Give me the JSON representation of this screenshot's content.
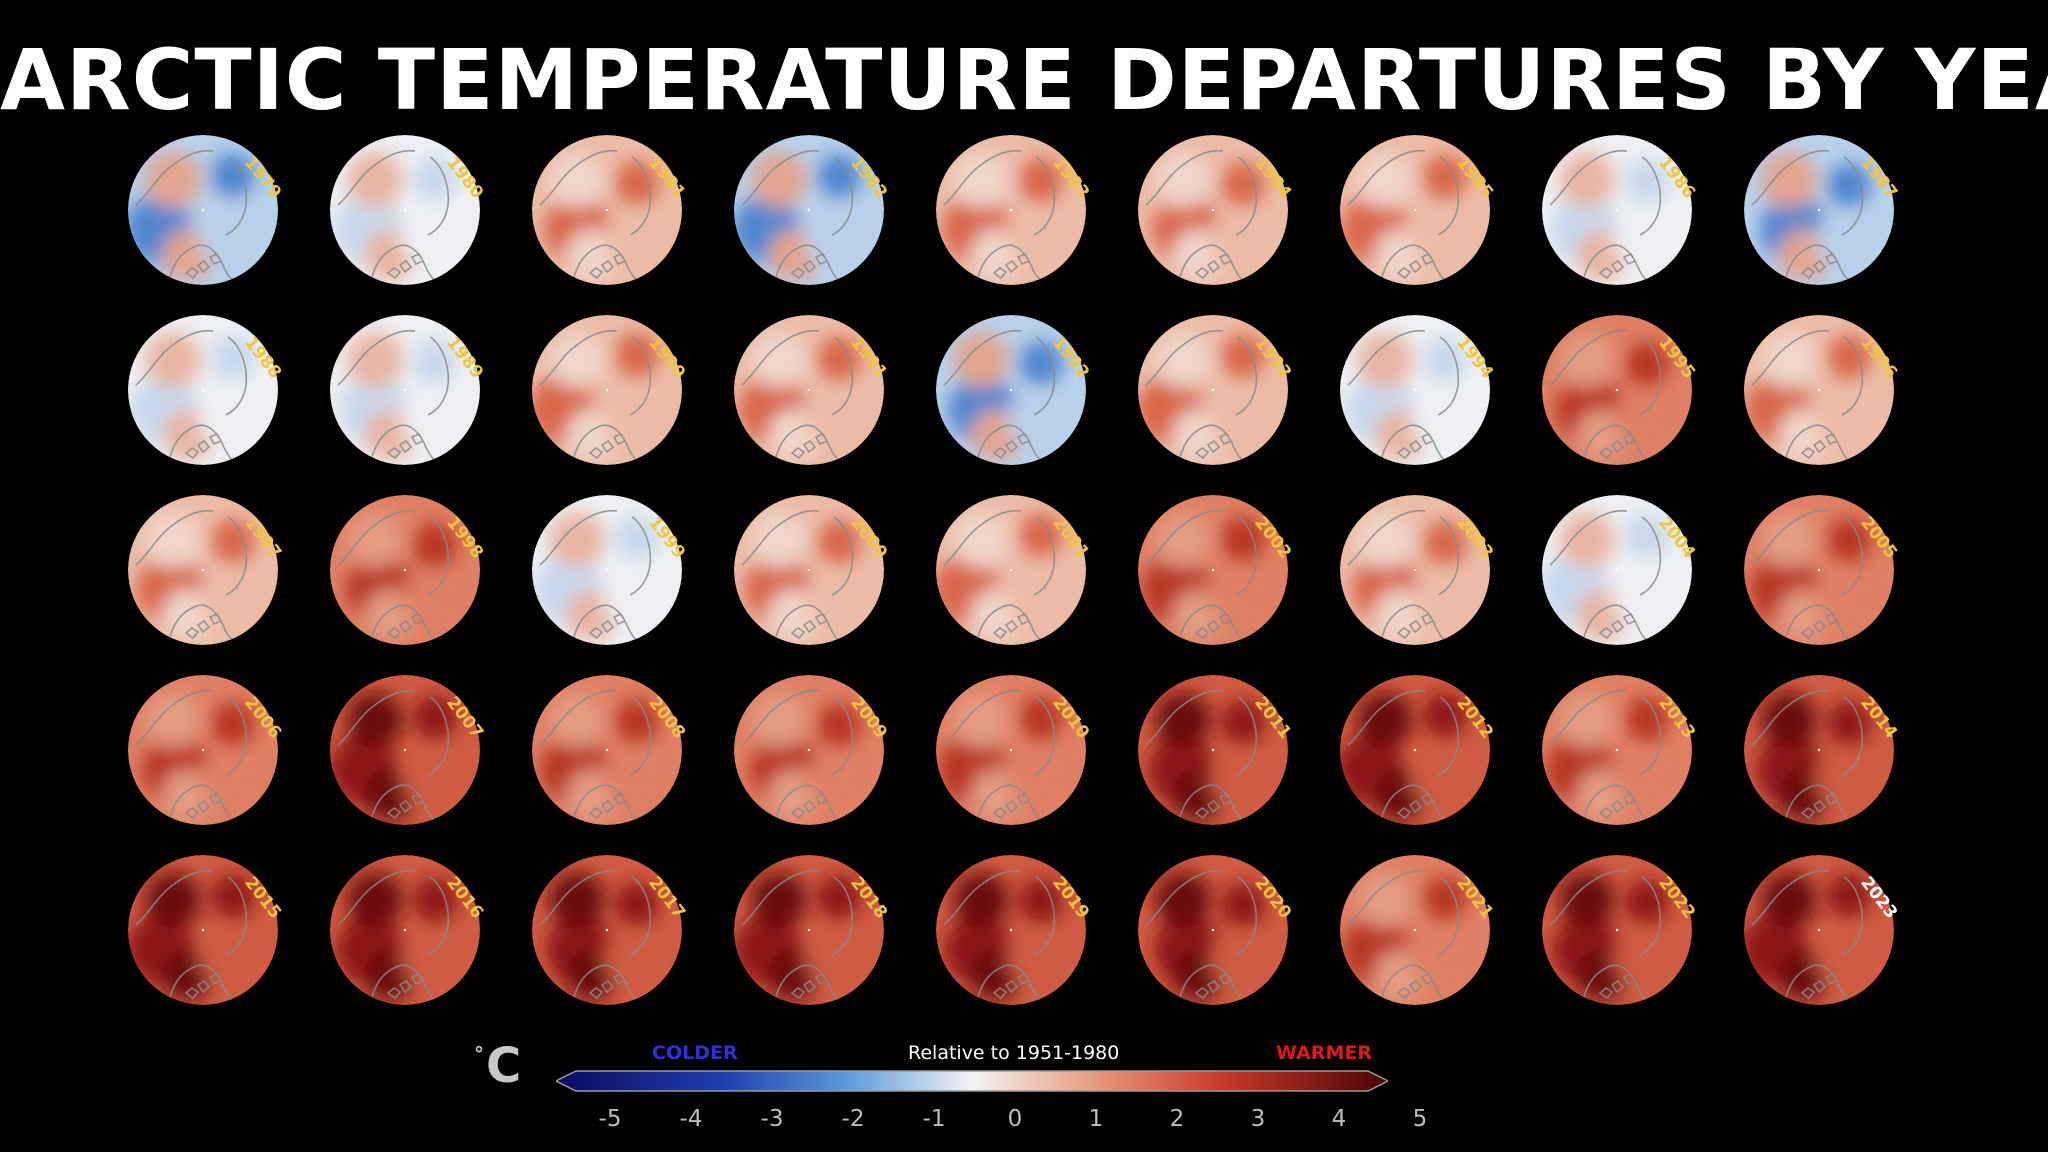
{
  "title": "ARCTIC TEMPERATURE DEPARTURES BY YEAR",
  "maps": [
    {
      "year": "1979",
      "label_color": "#f2c53d"
    },
    {
      "year": "1980",
      "label_color": "#f2c53d"
    },
    {
      "year": "1981",
      "label_color": "#f2c53d"
    },
    {
      "year": "1982",
      "label_color": "#f2c53d"
    },
    {
      "year": "1983",
      "label_color": "#f2c53d"
    },
    {
      "year": "1984",
      "label_color": "#f2c53d"
    },
    {
      "year": "1985",
      "label_color": "#f2c53d"
    },
    {
      "year": "1986",
      "label_color": "#f2c53d"
    },
    {
      "year": "1987",
      "label_color": "#f2c53d"
    },
    {
      "year": "1988",
      "label_color": "#f2c53d"
    },
    {
      "year": "1989",
      "label_color": "#f2c53d"
    },
    {
      "year": "1990",
      "label_color": "#f2c53d"
    },
    {
      "year": "1991",
      "label_color": "#f2c53d"
    },
    {
      "year": "1992",
      "label_color": "#f2c53d"
    },
    {
      "year": "1993",
      "label_color": "#f2c53d"
    },
    {
      "year": "1994",
      "label_color": "#f2c53d"
    },
    {
      "year": "1995",
      "label_color": "#f2c53d"
    },
    {
      "year": "1996",
      "label_color": "#f2c53d"
    },
    {
      "year": "1997",
      "label_color": "#f2c53d"
    },
    {
      "year": "1998",
      "label_color": "#f2c53d"
    },
    {
      "year": "1999",
      "label_color": "#f2c53d"
    },
    {
      "year": "2000",
      "label_color": "#f2c53d"
    },
    {
      "year": "2001",
      "label_color": "#f2c53d"
    },
    {
      "year": "2002",
      "label_color": "#f2c53d"
    },
    {
      "year": "2003",
      "label_color": "#f2c53d"
    },
    {
      "year": "2004",
      "label_color": "#f2c53d"
    },
    {
      "year": "2005",
      "label_color": "#f2c53d"
    },
    {
      "year": "2006",
      "label_color": "#f2c53d"
    },
    {
      "year": "2007",
      "label_color": "#f2c53d"
    },
    {
      "year": "2008",
      "label_color": "#f2c53d"
    },
    {
      "year": "2009",
      "label_color": "#f2c53d"
    },
    {
      "year": "2010",
      "label_color": "#f2c53d"
    },
    {
      "year": "2011",
      "label_color": "#f2c53d"
    },
    {
      "year": "2012",
      "label_color": "#f2c53d"
    },
    {
      "year": "2013",
      "label_color": "#f2c53d"
    },
    {
      "year": "2014",
      "label_color": "#f2c53d"
    },
    {
      "year": "2015",
      "label_color": "#f2c53d"
    },
    {
      "year": "2016",
      "label_color": "#f2c53d"
    },
    {
      "year": "2017",
      "label_color": "#f2c53d"
    },
    {
      "year": "2018",
      "label_color": "#f2c53d"
    },
    {
      "year": "2019",
      "label_color": "#f2c53d"
    },
    {
      "year": "2020",
      "label_color": "#f2c53d"
    },
    {
      "year": "2021",
      "label_color": "#f2c53d"
    },
    {
      "year": "2022",
      "label_color": "#f2c53d"
    },
    {
      "year": "2023",
      "label_color": "#ffffff"
    }
  ],
  "colorbar": {
    "unit": "C",
    "unit_degree": "°",
    "colder_label": "COLDER",
    "warmer_label": "WARMER",
    "reference_label": "Relative to 1951-1980",
    "ticks": [
      "-5",
      "-4",
      "-3",
      "-2",
      "-1",
      "0",
      "1",
      "2",
      "3",
      "4",
      "5"
    ],
    "range": [
      -5,
      5
    ],
    "colors": {
      "cold_extreme": "#0a0a5c",
      "cold": "#2a6fd0",
      "neutral": "#f3f3f3",
      "warm": "#d4553a",
      "warm_extreme": "#4a0505",
      "colder_text": "#2f2fe0",
      "warmer_text": "#e01818",
      "year_text": "#f2c53d"
    }
  }
}
